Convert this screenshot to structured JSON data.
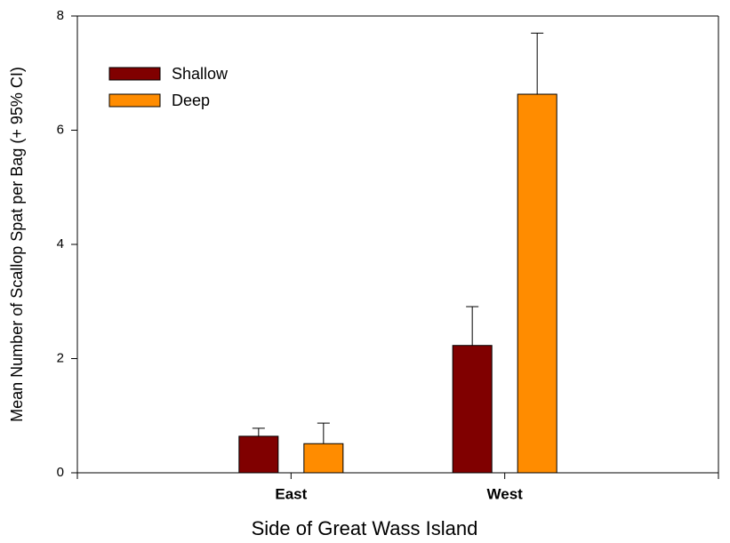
{
  "chart_data": {
    "type": "bar",
    "x_label": "Side of Great Wass Island",
    "y_label": "Mean Number of Scallop Spat per Bag (+ 95% CI)",
    "categories": [
      "East",
      "West"
    ],
    "series": [
      {
        "name": "Shallow",
        "color": "#800000",
        "values": [
          0.64,
          2.23
        ],
        "errors": [
          0.14,
          0.68
        ]
      },
      {
        "name": "Deep",
        "color": "#ff8c00",
        "values": [
          0.51,
          6.63
        ],
        "errors": [
          0.36,
          1.07
        ]
      }
    ],
    "ylim": [
      0,
      8
    ],
    "yticks": [
      0,
      2,
      4,
      6,
      8
    ],
    "legend": "upper left",
    "grid": false
  }
}
